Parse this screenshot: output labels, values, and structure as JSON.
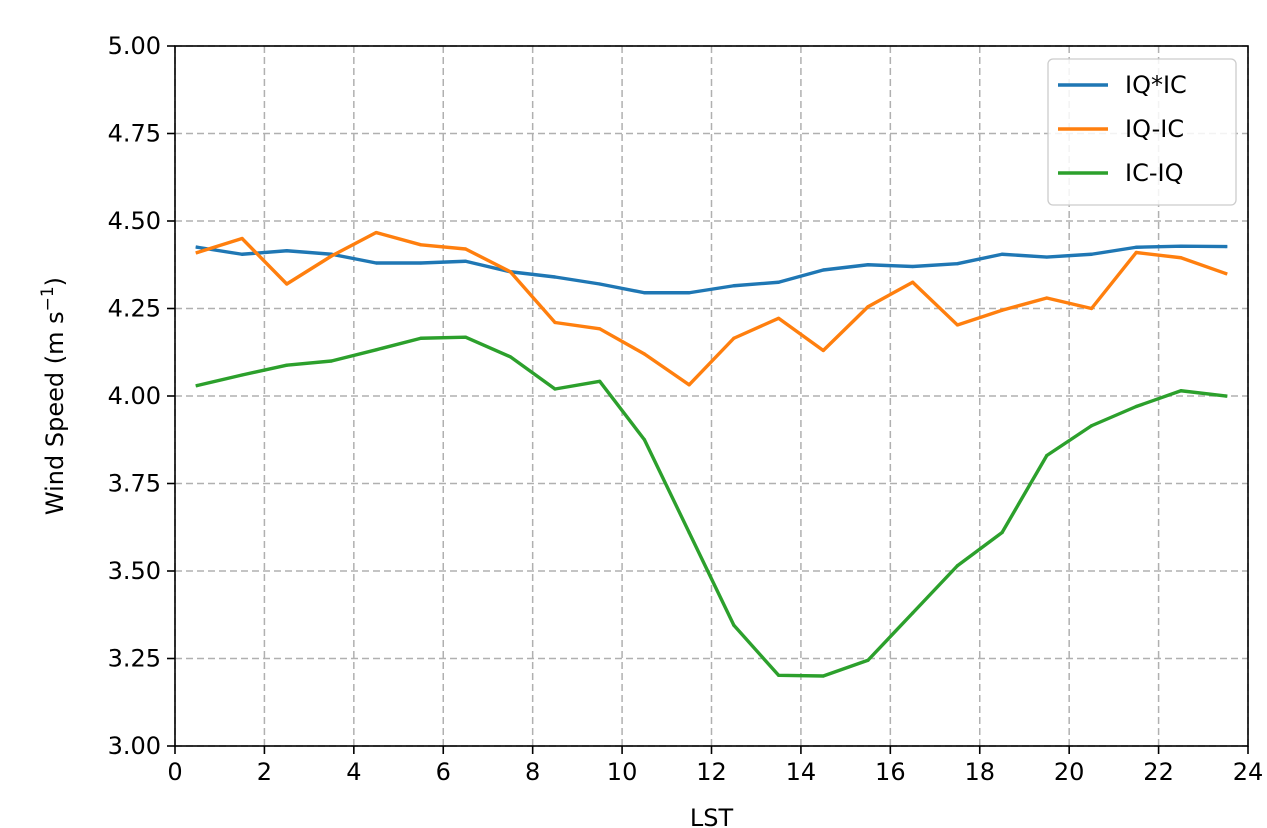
{
  "chart_data": {
    "type": "line",
    "title": "",
    "xlabel": "LST",
    "ylabel_main": "Wind Speed (m s",
    "ylabel_sup": "−1",
    "ylabel_close": ")",
    "xlim": [
      0,
      24
    ],
    "ylim": [
      3.0,
      5.0
    ],
    "xticks": [
      0,
      2,
      4,
      6,
      8,
      10,
      12,
      14,
      16,
      18,
      20,
      22,
      24
    ],
    "xtick_labels": [
      "0",
      "2",
      "4",
      "6",
      "8",
      "10",
      "12",
      "14",
      "16",
      "18",
      "20",
      "22",
      "24"
    ],
    "yticks": [
      3.0,
      3.25,
      3.5,
      3.75,
      4.0,
      4.25,
      4.5,
      4.75,
      5.0
    ],
    "ytick_labels": [
      "3.00",
      "3.25",
      "3.50",
      "3.75",
      "4.00",
      "4.25",
      "4.50",
      "4.75",
      "5.00"
    ],
    "grid": true,
    "legend_position": "top-right",
    "x": [
      0.5,
      1.5,
      2.5,
      3.5,
      4.5,
      5.5,
      6.5,
      7.5,
      8.5,
      9.5,
      10.5,
      11.5,
      12.5,
      13.5,
      14.5,
      15.5,
      16.5,
      17.5,
      18.5,
      19.5,
      20.5,
      21.5,
      22.5,
      23.5
    ],
    "series": [
      {
        "name": "IQ*IC",
        "color": "#1f77b4",
        "values": [
          4.425,
          4.405,
          4.415,
          4.405,
          4.38,
          4.38,
          4.385,
          4.355,
          4.34,
          4.32,
          4.295,
          4.295,
          4.315,
          4.325,
          4.36,
          4.375,
          4.37,
          4.378,
          4.405,
          4.397,
          4.405,
          4.425,
          4.428,
          4.427
        ]
      },
      {
        "name": "IQ-IC",
        "color": "#ff7f0e",
        "values": [
          4.41,
          4.45,
          4.32,
          4.4,
          4.467,
          4.432,
          4.42,
          4.355,
          4.21,
          4.192,
          4.12,
          4.032,
          4.165,
          4.222,
          4.13,
          4.255,
          4.325,
          4.203,
          4.245,
          4.28,
          4.25,
          4.41,
          4.395,
          4.35
        ]
      },
      {
        "name": "IC-IQ",
        "color": "#2ca02c",
        "values": [
          4.03,
          4.06,
          4.088,
          4.1,
          4.132,
          4.165,
          4.168,
          4.112,
          4.02,
          4.042,
          3.875,
          3.61,
          3.345,
          3.202,
          3.2,
          3.245,
          3.38,
          3.515,
          3.61,
          3.83,
          3.915,
          3.97,
          4.015,
          4.0
        ]
      }
    ]
  }
}
